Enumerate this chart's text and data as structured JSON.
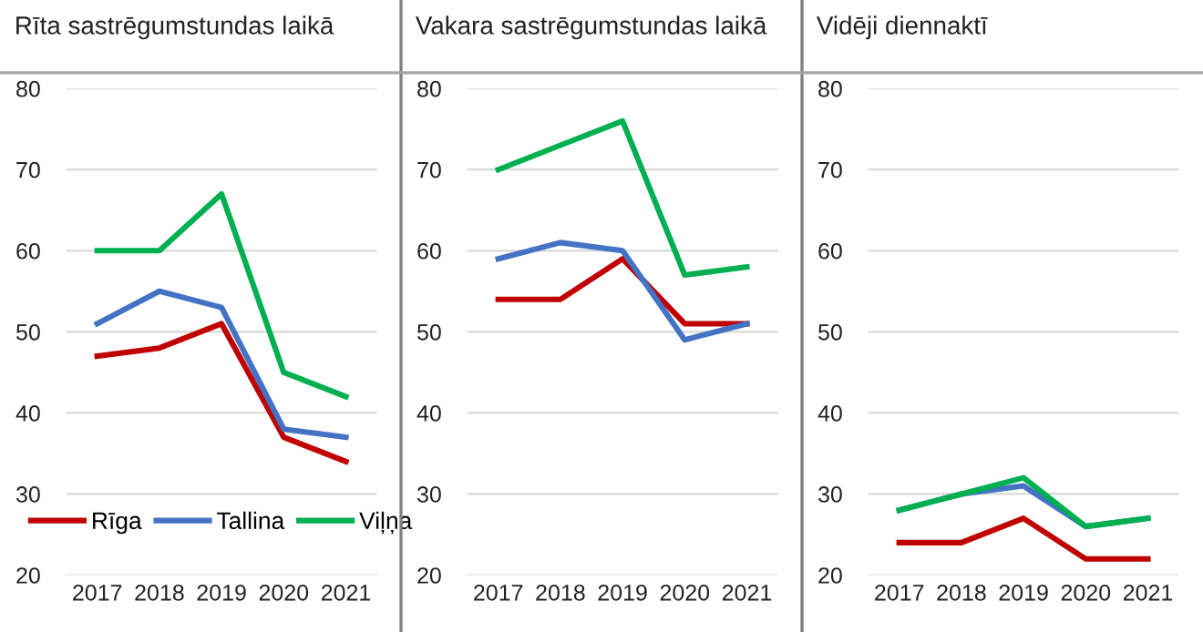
{
  "chart_data": [
    {
      "type": "line",
      "title": "Rīta sastrēgumstundas laikā",
      "categories": [
        "2017",
        "2018",
        "2019",
        "2020",
        "2021"
      ],
      "ylim": [
        20,
        80
      ],
      "yticks": [
        20,
        30,
        40,
        50,
        60,
        70,
        80
      ],
      "grid": "y",
      "legend": "bottom",
      "series": [
        {
          "name": "Rīga",
          "color": "#c00000",
          "values": [
            47,
            48,
            51,
            37,
            34
          ]
        },
        {
          "name": "Tallina",
          "color": "#4472c4",
          "values": [
            51,
            55,
            53,
            38,
            37
          ]
        },
        {
          "name": "Viļņa",
          "color": "#00b050",
          "values": [
            60,
            60,
            67,
            45,
            42
          ]
        }
      ]
    },
    {
      "type": "line",
      "title": "Vakara sastrēgumstundas laikā",
      "categories": [
        "2017",
        "2018",
        "2019",
        "2020",
        "2021"
      ],
      "ylim": [
        20,
        80
      ],
      "yticks": [
        20,
        30,
        40,
        50,
        60,
        70,
        80
      ],
      "grid": "y",
      "series": [
        {
          "color": "#c00000",
          "values": [
            54,
            54,
            59,
            51,
            51
          ]
        },
        {
          "color": "#4472c4",
          "values": [
            59,
            61,
            60,
            49,
            51
          ]
        },
        {
          "color": "#00b050",
          "values": [
            70,
            73,
            76,
            57,
            58
          ]
        }
      ]
    },
    {
      "type": "line",
      "title": "Vidēji diennaktī",
      "categories": [
        "2017",
        "2018",
        "2019",
        "2020",
        "2021"
      ],
      "ylim": [
        20,
        80
      ],
      "yticks": [
        20,
        30,
        40,
        50,
        60,
        70,
        80
      ],
      "grid": "y",
      "series": [
        {
          "color": "#c00000",
          "values": [
            24,
            24,
            27,
            22,
            22
          ]
        },
        {
          "color": "#4472c4",
          "values": [
            28,
            30,
            31,
            26,
            27
          ]
        },
        {
          "color": "#00b050",
          "values": [
            28,
            30,
            32,
            26,
            27
          ]
        }
      ]
    }
  ]
}
